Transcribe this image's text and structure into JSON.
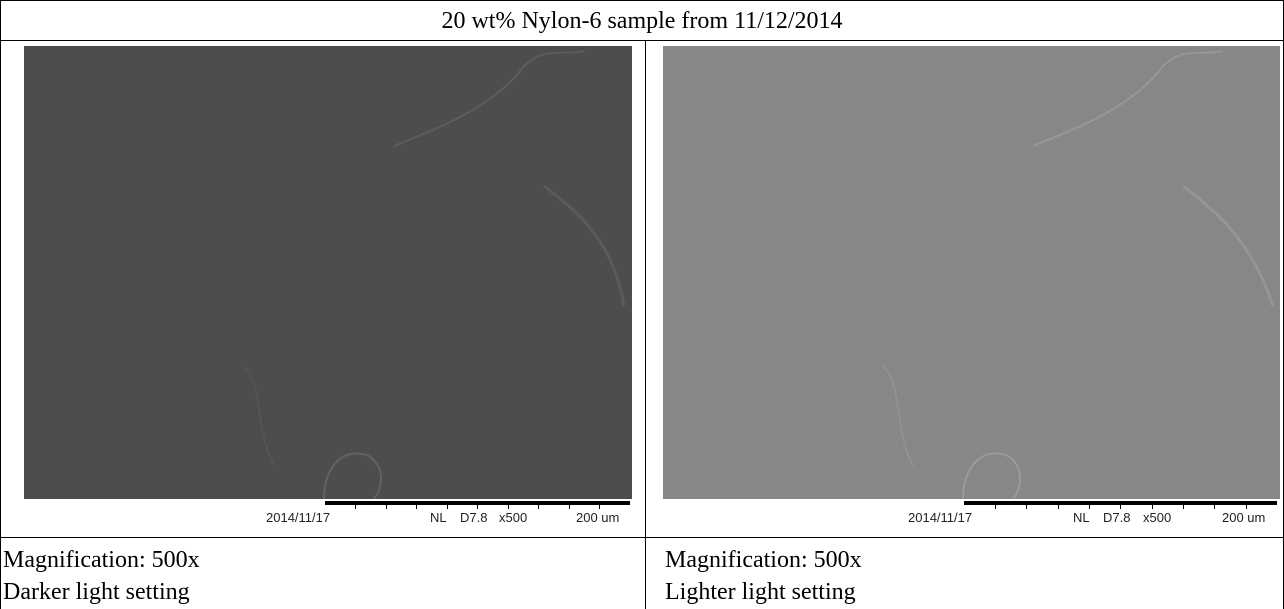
{
  "table": {
    "title": "20 wt% Nylon-6 sample from 11/12/2014",
    "cells": [
      {
        "image": {
          "date": "2014/11/17",
          "mode": "NL",
          "distance": "D7.8",
          "magnification": "x500",
          "scale": "200 um"
        },
        "lines": [
          "Magnification: 500x",
          "Darker light setting"
        ]
      },
      {
        "image": {
          "date": "2014/11/17",
          "mode": "NL",
          "distance": "D7.8",
          "magnification": "x500",
          "scale": "200 um"
        },
        "lines": [
          "Magnification: 500x",
          "Lighter light setting"
        ]
      }
    ]
  }
}
